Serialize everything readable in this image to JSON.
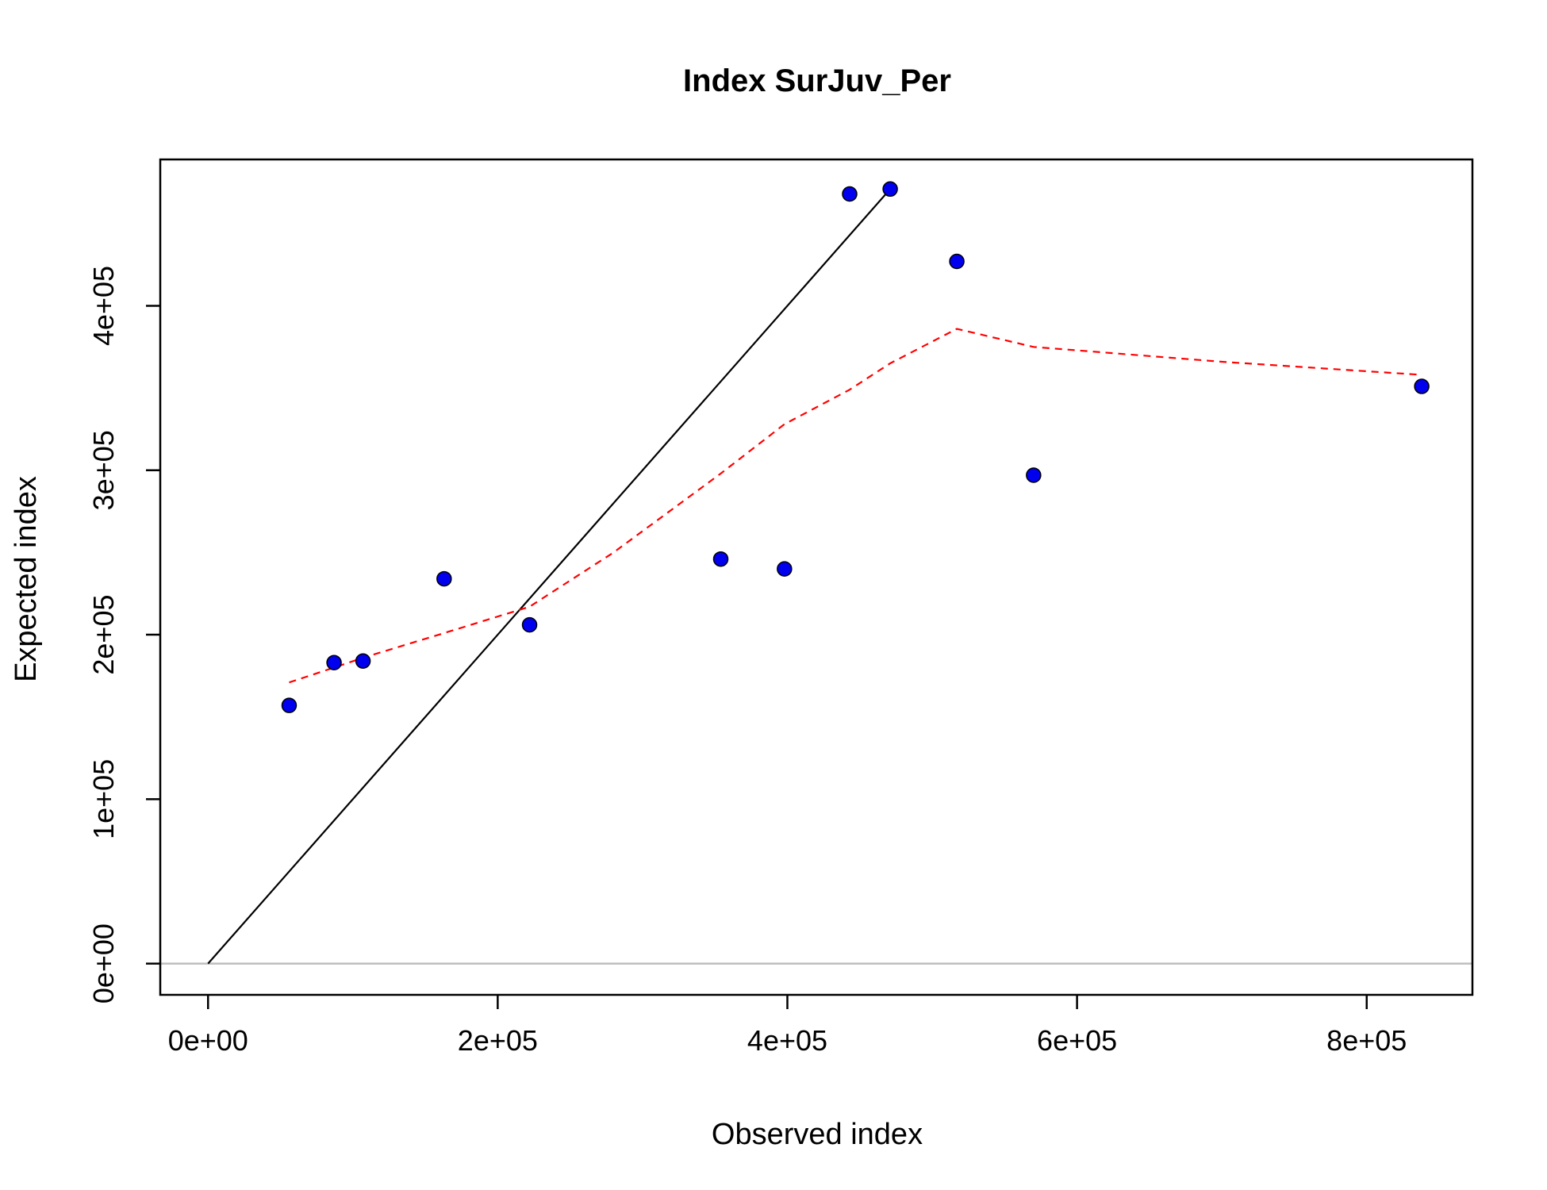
{
  "chart_data": {
    "type": "scatter",
    "title": "Index SurJuv_Per",
    "xlabel": "Observed index",
    "ylabel": "Expected index",
    "xlim": [
      -33000,
      873000
    ],
    "ylim": [
      -19000,
      489000
    ],
    "xticks": [
      {
        "value": 0,
        "label": "0e+00"
      },
      {
        "value": 200000,
        "label": "2e+05"
      },
      {
        "value": 400000,
        "label": "4e+05"
      },
      {
        "value": 600000,
        "label": "6e+05"
      },
      {
        "value": 800000,
        "label": "8e+05"
      }
    ],
    "yticks": [
      {
        "value": 0,
        "label": "0e+00"
      },
      {
        "value": 100000,
        "label": "1e+05"
      },
      {
        "value": 200000,
        "label": "2e+05"
      },
      {
        "value": 300000,
        "label": "3e+05"
      },
      {
        "value": 400000,
        "label": "4e+05"
      }
    ],
    "points": [
      {
        "x": 56000,
        "y": 157000
      },
      {
        "x": 87000,
        "y": 183000
      },
      {
        "x": 107000,
        "y": 184000
      },
      {
        "x": 163000,
        "y": 234000
      },
      {
        "x": 222000,
        "y": 206000
      },
      {
        "x": 354000,
        "y": 246000
      },
      {
        "x": 398000,
        "y": 240000
      },
      {
        "x": 443000,
        "y": 468000
      },
      {
        "x": 471000,
        "y": 471000
      },
      {
        "x": 517000,
        "y": 427000
      },
      {
        "x": 570000,
        "y": 297000
      },
      {
        "x": 838000,
        "y": 351000
      }
    ],
    "identity_line": {
      "from": [
        0,
        0
      ],
      "to": [
        471000,
        471000
      ],
      "color": "#000000"
    },
    "smooth_line": {
      "color": "#ff0000",
      "style": "dashed",
      "points": [
        {
          "x": 56000,
          "y": 171000
        },
        {
          "x": 87000,
          "y": 180000
        },
        {
          "x": 107000,
          "y": 186000
        },
        {
          "x": 163000,
          "y": 201000
        },
        {
          "x": 222000,
          "y": 217000
        },
        {
          "x": 280000,
          "y": 250000
        },
        {
          "x": 354000,
          "y": 298000
        },
        {
          "x": 398000,
          "y": 328000
        },
        {
          "x": 443000,
          "y": 349000
        },
        {
          "x": 471000,
          "y": 365000
        },
        {
          "x": 517000,
          "y": 386000
        },
        {
          "x": 570000,
          "y": 375000
        },
        {
          "x": 700000,
          "y": 366000
        },
        {
          "x": 838000,
          "y": 358000
        }
      ]
    },
    "reference_hline": {
      "y": 0,
      "color": "#bebebe"
    },
    "point_color": "#0000ee",
    "grid": false,
    "legend": "none"
  }
}
